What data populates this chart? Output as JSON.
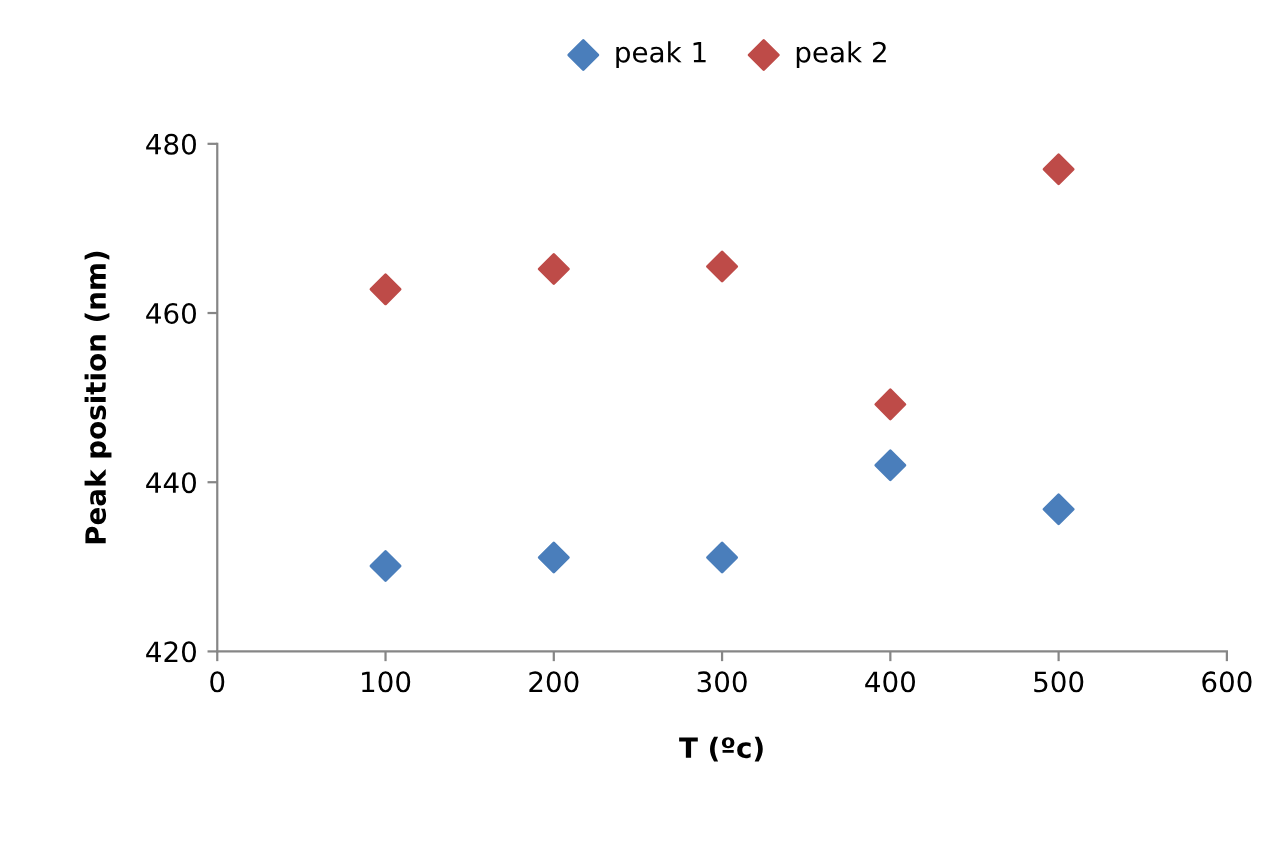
{
  "chart_data": {
    "type": "scatter",
    "xlabel": "T (ºc)",
    "ylabel": "Peak position (nm)",
    "x": [
      100,
      200,
      300,
      400,
      500
    ],
    "series": [
      {
        "name": "peak 1",
        "color": "#4a7ebb",
        "values": [
          430.1,
          431.1,
          431.1,
          442.0,
          436.8
        ]
      },
      {
        "name": "peak 2",
        "color": "#be4b48",
        "values": [
          462.8,
          465.2,
          465.5,
          449.2,
          477.0
        ]
      }
    ],
    "xlim": [
      0,
      600
    ],
    "xticks": [
      0,
      100,
      200,
      300,
      400,
      500,
      600
    ],
    "ylim": [
      420,
      480
    ],
    "yticks": [
      420,
      440,
      460,
      480
    ],
    "grid": false,
    "legend": "top",
    "marker": "diamond"
  }
}
